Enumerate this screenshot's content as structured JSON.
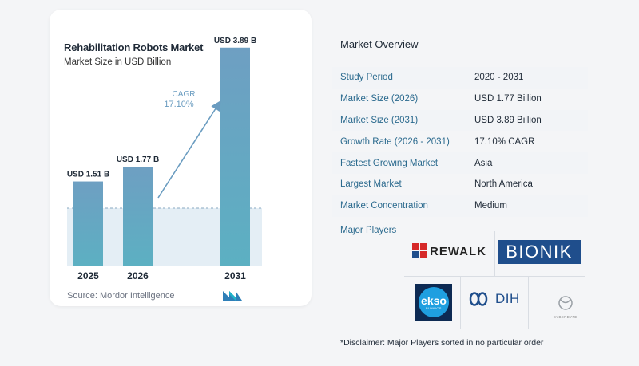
{
  "chart": {
    "title": "Rehabilitation Robots Market",
    "subtitle": "Market Size in USD Billion",
    "source": "Source:  Mordor Intelligence",
    "cagr_label": "CAGR",
    "cagr_value": "17.10%"
  },
  "chart_data": {
    "type": "bar",
    "categories": [
      "2025",
      "2026",
      "2031"
    ],
    "values": [
      1.51,
      1.77,
      3.89
    ],
    "data_labels": [
      "USD 1.51 B",
      "USD 1.77 B",
      "USD 3.89 B"
    ],
    "title": "Rehabilitation Robots Market",
    "subtitle": "Market Size in USD Billion",
    "xlabel": "",
    "ylabel": "",
    "ylim": [
      0,
      4
    ],
    "grid": false,
    "colors": {
      "bar_top": "#6fa3c4",
      "bar_bottom": "#5aa9c0",
      "baseline_fill": "#e4eef5",
      "arrow": "#6a9cc0"
    }
  },
  "overview": {
    "title": "Market Overview",
    "rows": [
      {
        "label": "Study Period",
        "value": "2020 - 2031"
      },
      {
        "label": "Market Size (2026)",
        "value": "USD 1.77 Billion"
      },
      {
        "label": "Market Size (2031)",
        "value": "USD 3.89 Billion"
      },
      {
        "label": "Growth Rate (2026 - 2031)",
        "value": "17.10% CAGR"
      },
      {
        "label": "Fastest Growing Market",
        "value": "Asia"
      },
      {
        "label": "Largest Market",
        "value": "North America"
      },
      {
        "label": "Market Concentration",
        "value": "Medium"
      }
    ]
  },
  "players": {
    "title": "Major Players",
    "logos": {
      "rewalk": "REWALK",
      "bionik": "BIONIK",
      "ekso": "ekso",
      "ekso_sub": "BIONICS",
      "dih": "DIH",
      "cyberdyne": "CYBERDYNE"
    }
  },
  "disclaimer": "*Disclaimer: Major Players sorted in no particular order"
}
